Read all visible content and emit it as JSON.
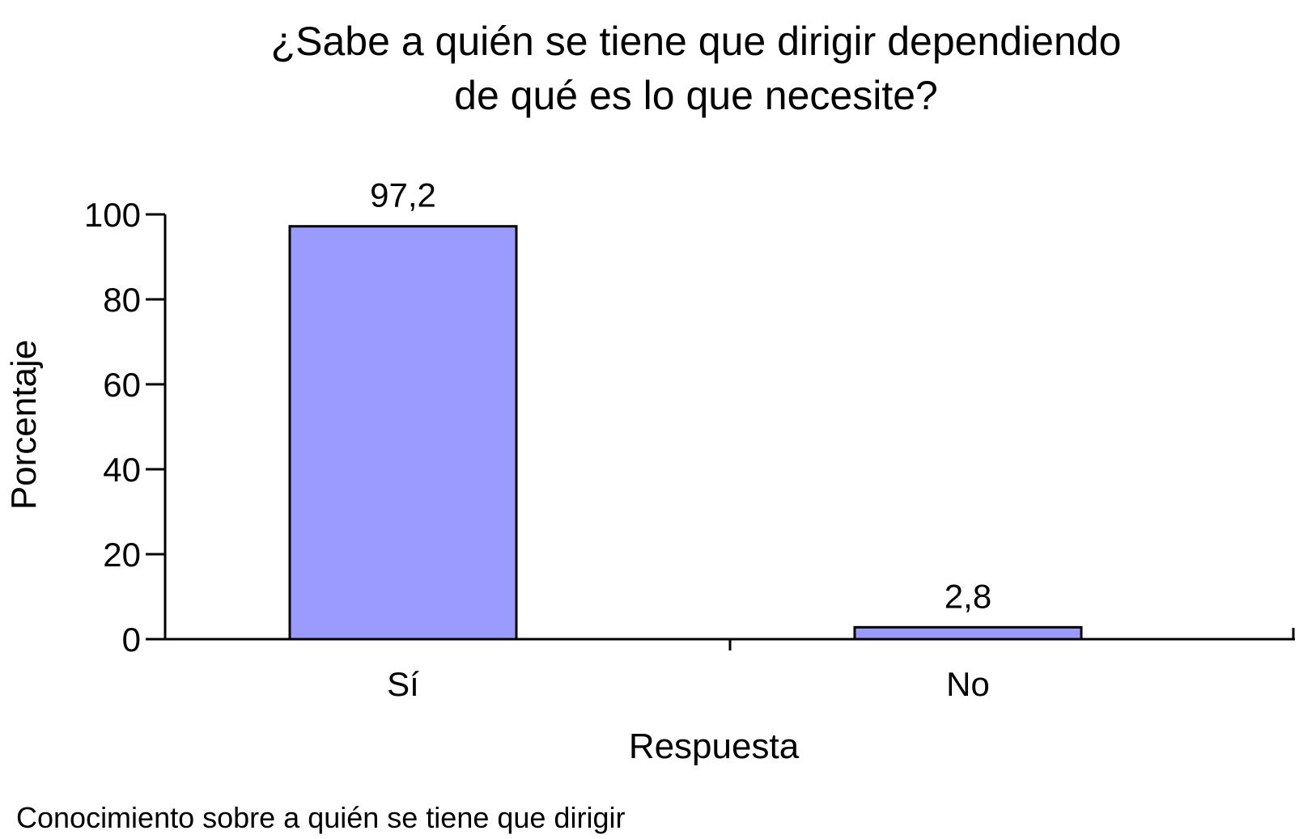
{
  "chart_data": {
    "type": "bar",
    "title_lines": [
      "¿Sabe a quién se tiene que dirigir dependiendo",
      "de qué es lo que necesite?"
    ],
    "categories": [
      "Sí",
      "No"
    ],
    "values": [
      97.2,
      2.8
    ],
    "value_labels": [
      "97,2",
      "2,8"
    ],
    "xlabel": "Respuesta",
    "ylabel": "Porcentaje",
    "ylim": [
      0,
      100
    ],
    "yticks": [
      0,
      20,
      40,
      60,
      80,
      100
    ],
    "grid": false,
    "legend": "none",
    "bar_color": "#9b9bff",
    "edge_color": "#000000"
  },
  "caption": "Conocimiento sobre a quién se tiene que dirigir"
}
